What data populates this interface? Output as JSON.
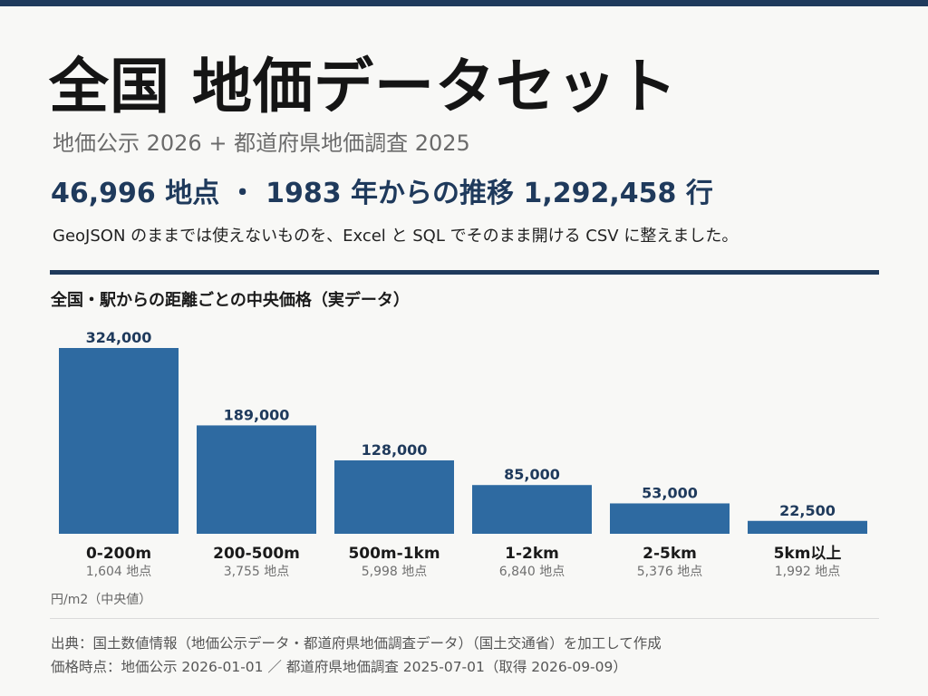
{
  "title": "全国 地価データセット",
  "subtitle": "地価公示 2026 + 都道府県地価調査 2025",
  "headline": "46,996 地点 ・ 1983 年からの推移 1,292,458 行",
  "description": "GeoJSON のままでは使えないものを、Excel と SQL でそのまま開ける CSV に整えました。",
  "chart_title": "全国・駅からの距離ごとの中央価格（実データ）",
  "unit_label": "円/m2（中央値）",
  "source_line": "出典：国土数値情報（地価公示データ・都道府県地価調査データ）（国土交通省）を加工して作成",
  "timing_line": "価格時点：地価公示 2026-01-01 ／ 都道府県地価調査 2025-07-01（取得 2026-09-09）",
  "colors": {
    "accent": "#1f3a5c",
    "bar": "#2e6aa1",
    "value_label": "#1f3a5c"
  },
  "chart_data": {
    "type": "bar",
    "title": "全国・駅からの距離ごとの中央価格（実データ）",
    "xlabel": "",
    "ylabel": "円/m2（中央値）",
    "grid": false,
    "ylim": [
      0,
      324000
    ],
    "categories": [
      "0-200m",
      "200-500m",
      "500m-1km",
      "1-2km",
      "2-5km",
      "5km以上"
    ],
    "values": [
      324000,
      189000,
      128000,
      85000,
      53000,
      22500
    ],
    "value_labels": [
      "324,000",
      "189,000",
      "128,000",
      "85,000",
      "53,000",
      "22,500"
    ],
    "point_counts": [
      "1,604 地点",
      "3,755 地点",
      "5,998 地点",
      "6,840 地点",
      "5,376 地点",
      "1,992 地点"
    ]
  }
}
